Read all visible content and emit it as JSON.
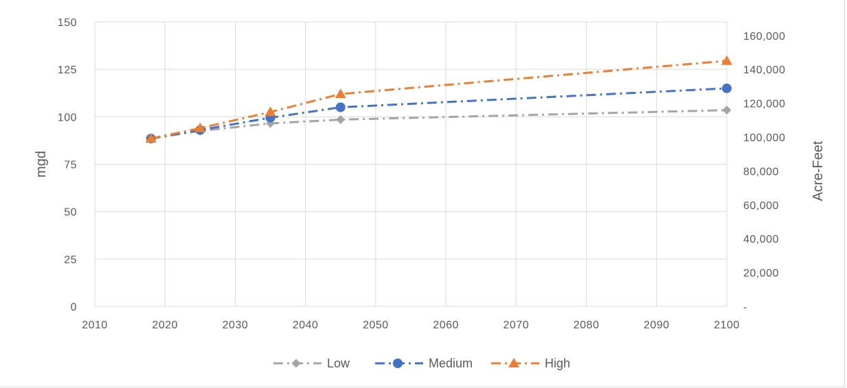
{
  "chart_data": {
    "type": "line",
    "title": "",
    "xlabel": "",
    "ylabel": "mgd",
    "y2label": "Acre-Feet",
    "xlim": [
      2010,
      2100
    ],
    "ylim": [
      0,
      150
    ],
    "y2lim": [
      0,
      168000
    ],
    "x_ticks": [
      2010,
      2020,
      2030,
      2040,
      2050,
      2060,
      2070,
      2080,
      2090,
      2100
    ],
    "y_ticks": [
      0,
      25,
      50,
      75,
      100,
      125,
      150
    ],
    "y2_ticks": [
      "-",
      "20,000",
      "40,000",
      "60,000",
      "80,000",
      "100,000",
      "120,000",
      "140,000",
      "160,000"
    ],
    "y2_tick_values": [
      0,
      20000,
      40000,
      60000,
      80000,
      100000,
      120000,
      140000,
      160000
    ],
    "grid": true,
    "legend_position": "bottom",
    "series": [
      {
        "name": "Low",
        "color": "#a5a5a5",
        "marker": "diamond",
        "x": [
          2018,
          2025,
          2035,
          2045,
          2100
        ],
        "y": [
          88.5,
          92.5,
          96.5,
          98.5,
          103.5
        ]
      },
      {
        "name": "Medium",
        "color": "#4472c4",
        "marker": "circle",
        "x": [
          2018,
          2025,
          2035,
          2045,
          2100
        ],
        "y": [
          88.5,
          93.0,
          99.5,
          105.0,
          115.0
        ]
      },
      {
        "name": "High",
        "color": "#ed7d31",
        "marker": "triangle",
        "x": [
          2018,
          2025,
          2035,
          2045,
          2100
        ],
        "y": [
          88.5,
          94.0,
          102.5,
          112.0,
          129.5
        ]
      }
    ]
  }
}
